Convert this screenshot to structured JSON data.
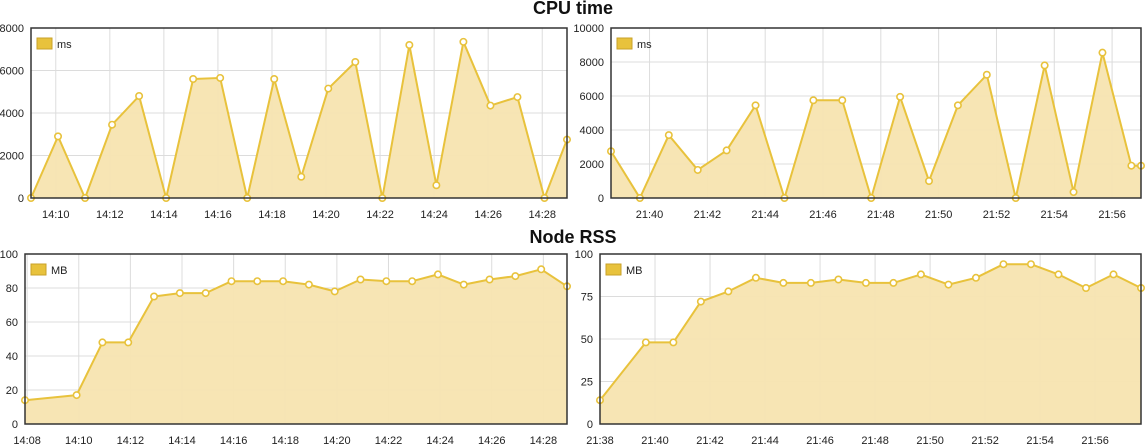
{
  "sections": {
    "cpu_title": "CPU time",
    "rss_title": "Node RSS"
  },
  "colors": {
    "line": "#e8c23c",
    "fill": "#f7e4b0",
    "grid": "#dcdcdc",
    "frame": "#333333",
    "marker_fill": "#ffffff"
  },
  "chart_data": [
    {
      "type": "area",
      "legend": "ms",
      "legend_position": "top-left",
      "grid": true,
      "ylim": [
        0,
        8000
      ],
      "y_ticks": [
        "0",
        "2000",
        "4000",
        "6000",
        "8000"
      ],
      "xlim": [
        "14:09:05",
        "14:28:55"
      ],
      "x_ticks": [
        "14:10",
        "14:12",
        "14:14",
        "14:16",
        "14:18",
        "14:20",
        "14:22",
        "14:24",
        "14:26",
        "14:28"
      ],
      "x": [
        "14:09:05",
        "14:10:05",
        "14:11:05",
        "14:12:05",
        "14:13:05",
        "14:14:05",
        "14:15:05",
        "14:16:05",
        "14:17:05",
        "14:18:05",
        "14:19:05",
        "14:20:05",
        "14:21:05",
        "14:22:05",
        "14:23:05",
        "14:24:05",
        "14:25:05",
        "14:26:05",
        "14:27:05",
        "14:28:05",
        "14:28:55"
      ],
      "values": [
        0,
        2900,
        0,
        3450,
        4800,
        0,
        5600,
        5650,
        0,
        5600,
        1000,
        5150,
        6400,
        0,
        7200,
        600,
        7350,
        4350,
        4750,
        0,
        2750
      ]
    },
    {
      "type": "area",
      "legend": "ms",
      "legend_position": "top-left",
      "grid": true,
      "ylim": [
        0,
        10000
      ],
      "y_ticks": [
        "0",
        "2000",
        "4000",
        "6000",
        "8000",
        "10000"
      ],
      "xlim": [
        "21:38:40",
        "21:57:00"
      ],
      "x_ticks": [
        "21:40",
        "21:42",
        "21:44",
        "21:46",
        "21:48",
        "21:50",
        "21:52",
        "21:54",
        "21:56"
      ],
      "x": [
        "21:38:40",
        "21:39:40",
        "21:40:40",
        "21:41:40",
        "21:42:40",
        "21:43:40",
        "21:44:40",
        "21:45:40",
        "21:46:40",
        "21:47:40",
        "21:48:40",
        "21:49:40",
        "21:50:40",
        "21:51:40",
        "21:52:40",
        "21:53:40",
        "21:54:40",
        "21:55:40",
        "21:56:40",
        "21:57:00"
      ],
      "values": [
        2750,
        0,
        3700,
        1650,
        2800,
        5450,
        0,
        5750,
        5750,
        0,
        5950,
        1000,
        5450,
        7250,
        0,
        7800,
        350,
        8550,
        1900,
        1900
      ]
    },
    {
      "type": "area",
      "legend": "MB",
      "legend_position": "top-left",
      "grid": true,
      "ylim": [
        0,
        100
      ],
      "y_ticks": [
        "0",
        "20",
        "40",
        "60",
        "80",
        "100"
      ],
      "xlim": [
        "14:07:55",
        "14:28:55"
      ],
      "x_ticks": [
        "14:08",
        "14:10",
        "14:12",
        "14:14",
        "14:16",
        "14:18",
        "14:20",
        "14:22",
        "14:24",
        "14:26",
        "14:28"
      ],
      "x": [
        "14:07:55",
        "14:09:55",
        "14:10:55",
        "14:11:55",
        "14:12:55",
        "14:13:55",
        "14:14:55",
        "14:15:55",
        "14:16:55",
        "14:17:55",
        "14:18:55",
        "14:19:55",
        "14:20:55",
        "14:21:55",
        "14:22:55",
        "14:23:55",
        "14:24:55",
        "14:25:55",
        "14:26:55",
        "14:27:55",
        "14:28:55"
      ],
      "values": [
        14,
        17,
        48,
        48,
        75,
        77,
        77,
        84,
        84,
        84,
        82,
        78,
        85,
        84,
        84,
        88,
        82,
        85,
        87,
        91,
        81
      ]
    },
    {
      "type": "area",
      "legend": "MB",
      "legend_position": "top-left",
      "grid": true,
      "ylim": [
        0,
        100
      ],
      "y_ticks": [
        "0",
        "25",
        "50",
        "75",
        "100"
      ],
      "xlim": [
        "21:38:00",
        "21:57:40"
      ],
      "x_ticks": [
        "21:38",
        "21:40",
        "21:42",
        "21:44",
        "21:46",
        "21:48",
        "21:50",
        "21:52",
        "21:54",
        "21:56"
      ],
      "x": [
        "21:38:00",
        "21:39:40",
        "21:40:40",
        "21:41:40",
        "21:42:40",
        "21:43:40",
        "21:44:40",
        "21:45:40",
        "21:46:40",
        "21:47:40",
        "21:48:40",
        "21:49:40",
        "21:50:40",
        "21:51:40",
        "21:52:40",
        "21:53:40",
        "21:54:40",
        "21:55:40",
        "21:56:40",
        "21:57:40"
      ],
      "values": [
        14,
        48,
        48,
        72,
        78,
        86,
        83,
        83,
        85,
        83,
        83,
        88,
        82,
        86,
        94,
        94,
        88,
        80,
        88,
        80
      ]
    }
  ]
}
